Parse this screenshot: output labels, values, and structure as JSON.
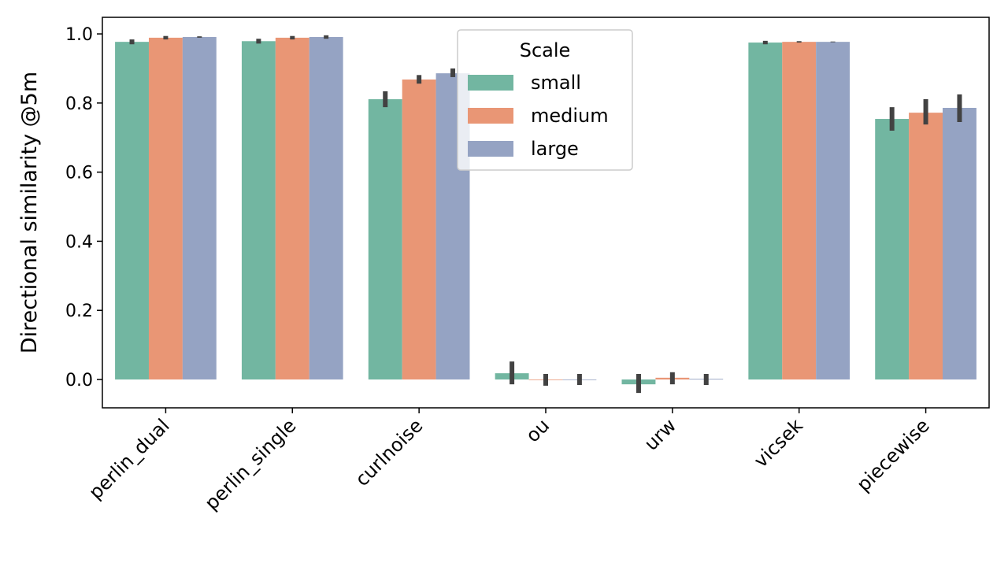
{
  "chart_data": {
    "type": "bar",
    "title": "",
    "xlabel": "",
    "ylabel": "Directional similarity @5m",
    "ylim": [
      -0.082,
      1.048
    ],
    "yticks": [
      "0.0",
      "0.2",
      "0.4",
      "0.6",
      "0.8",
      "1.0"
    ],
    "grid": false,
    "categories": [
      "perlin_dual",
      "perlin_single",
      "curlnoise",
      "ou",
      "urw",
      "vicsek",
      "piecewise"
    ],
    "legend": {
      "title": "Scale",
      "placement": "top-center"
    },
    "series": [
      {
        "name": "small",
        "color": "#72b6a1",
        "values": [
          0.977,
          0.979,
          0.811,
          0.018,
          -0.014,
          0.975,
          0.754
        ],
        "ci_low": [
          0.97,
          0.972,
          0.788,
          -0.014,
          -0.039,
          0.97,
          0.72
        ],
        "ci_high": [
          0.984,
          0.986,
          0.834,
          0.052,
          0.016,
          0.98,
          0.788
        ]
      },
      {
        "name": "medium",
        "color": "#e99675",
        "values": [
          0.989,
          0.989,
          0.868,
          -0.001,
          0.005,
          0.977,
          0.772
        ],
        "ci_low": [
          0.984,
          0.984,
          0.856,
          -0.018,
          -0.014,
          0.975,
          0.738
        ],
        "ci_high": [
          0.994,
          0.994,
          0.881,
          0.016,
          0.021,
          0.979,
          0.811
        ]
      },
      {
        "name": "large",
        "color": "#95a3c3",
        "values": [
          0.991,
          0.991,
          0.886,
          0.0,
          0.002,
          0.977,
          0.786
        ],
        "ci_low": [
          0.989,
          0.986,
          0.875,
          -0.016,
          -0.016,
          0.976,
          0.745
        ],
        "ci_high": [
          0.993,
          0.996,
          0.9,
          0.016,
          0.016,
          0.978,
          0.825
        ]
      }
    ]
  }
}
